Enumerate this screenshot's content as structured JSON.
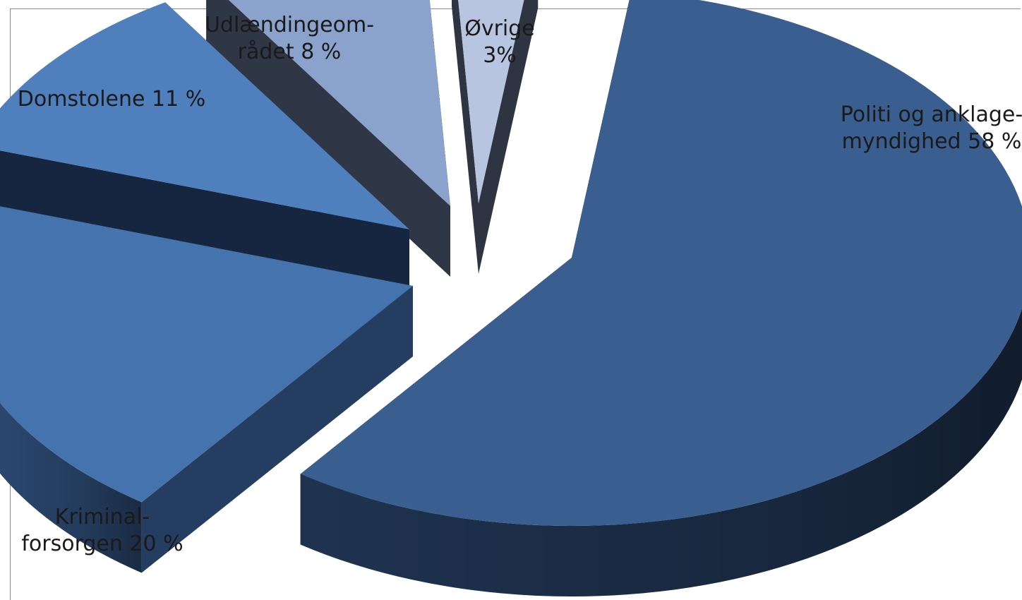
{
  "chart_data": {
    "type": "pie",
    "title": "",
    "slices": [
      {
        "label": [
          "Politi og anklage-",
          "myndighed 58 %"
        ],
        "value": 58,
        "color": "#3a5e8f",
        "side": "#1f3350",
        "dark": "#162640"
      },
      {
        "label": [
          "Kriminal-",
          "forsorgen 20 %"
        ],
        "value": 20,
        "color": "#4573ad",
        "side": "#2f4e7a",
        "dark": "#243d60"
      },
      {
        "label": [
          "Domstolene 11 %"
        ],
        "value": 11,
        "color": "#4f7fbd",
        "side": "#1d2f4a",
        "dark": "#172640"
      },
      {
        "label": [
          "Udlændingeom-",
          "rådet 8 %"
        ],
        "value": 8,
        "color": "#8aa2cc",
        "side": "#3b4458",
        "dark": "#2f3646"
      },
      {
        "label": [
          "Øvrige",
          "3%"
        ],
        "value": 3,
        "color": "#b8c5e0",
        "side": "#3a4152",
        "dark": "#2e3442"
      }
    ]
  }
}
